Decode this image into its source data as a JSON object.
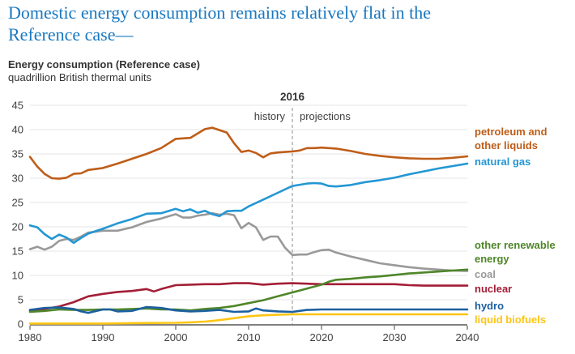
{
  "page_title": "Domestic energy consumption remains relatively flat in the Reference case—",
  "chart_header": {
    "title": "Energy consumption (Reference case)",
    "subtitle": "quadrillion British thermal units"
  },
  "colors": {
    "title_blue": "#1878c0",
    "text_dark": "#333333",
    "axis_text": "#404040",
    "axis_line": "#808080",
    "gridline": "#e4e4e4",
    "divider_line": "#9f9f9f"
  },
  "chart_data": {
    "type": "line",
    "title": "Energy consumption (Reference case)",
    "ylabel": "quadrillion British thermal units",
    "xlim": [
      1980,
      2040
    ],
    "ylim": [
      0,
      45
    ],
    "xticks": [
      1980,
      1990,
      2000,
      2010,
      2020,
      2030,
      2040
    ],
    "yticks": [
      0,
      5,
      10,
      15,
      20,
      25,
      30,
      35,
      40,
      45
    ],
    "grid": "horizontal",
    "legend_position": "right",
    "divider": {
      "year": 2016,
      "label": "2016",
      "left_label": "history",
      "right_label": "projections"
    },
    "series": [
      {
        "name": "coal",
        "color": "#999999",
        "points": [
          [
            1980,
            15.4
          ],
          [
            1981,
            15.9
          ],
          [
            1982,
            15.3
          ],
          [
            1983,
            15.9
          ],
          [
            1984,
            17.1
          ],
          [
            1985,
            17.5
          ],
          [
            1986,
            17.3
          ],
          [
            1987,
            18.0
          ],
          [
            1988,
            18.8
          ],
          [
            1990,
            19.2
          ],
          [
            1992,
            19.2
          ],
          [
            1994,
            19.9
          ],
          [
            1996,
            21.0
          ],
          [
            1998,
            21.7
          ],
          [
            2000,
            22.6
          ],
          [
            2001,
            21.9
          ],
          [
            2002,
            21.9
          ],
          [
            2003,
            22.3
          ],
          [
            2004,
            22.5
          ],
          [
            2005,
            22.8
          ],
          [
            2006,
            22.5
          ],
          [
            2007,
            22.7
          ],
          [
            2008,
            22.4
          ],
          [
            2009,
            19.7
          ],
          [
            2010,
            20.8
          ],
          [
            2011,
            19.9
          ],
          [
            2012,
            17.3
          ],
          [
            2013,
            18.0
          ],
          [
            2014,
            18.0
          ],
          [
            2015,
            15.7
          ],
          [
            2016,
            14.2
          ],
          [
            2017,
            14.3
          ],
          [
            2018,
            14.3
          ],
          [
            2019,
            14.8
          ],
          [
            2020,
            15.2
          ],
          [
            2021,
            15.3
          ],
          [
            2022,
            14.7
          ],
          [
            2024,
            13.9
          ],
          [
            2026,
            13.2
          ],
          [
            2028,
            12.5
          ],
          [
            2030,
            12.1
          ],
          [
            2032,
            11.7
          ],
          [
            2034,
            11.4
          ],
          [
            2036,
            11.2
          ],
          [
            2038,
            11.0
          ],
          [
            2040,
            10.9
          ]
        ]
      },
      {
        "name": "petroleum and other liquids",
        "color": "#bf5d18",
        "points": [
          [
            1980,
            34.4
          ],
          [
            1981,
            32.4
          ],
          [
            1982,
            30.9
          ],
          [
            1983,
            30.0
          ],
          [
            1984,
            29.9
          ],
          [
            1985,
            30.1
          ],
          [
            1986,
            30.9
          ],
          [
            1987,
            31.0
          ],
          [
            1988,
            31.7
          ],
          [
            1990,
            32.1
          ],
          [
            1992,
            33.0
          ],
          [
            1994,
            34.0
          ],
          [
            1996,
            35.0
          ],
          [
            1998,
            36.2
          ],
          [
            2000,
            38.1
          ],
          [
            2002,
            38.3
          ],
          [
            2004,
            40.1
          ],
          [
            2005,
            40.4
          ],
          [
            2006,
            39.9
          ],
          [
            2007,
            39.4
          ],
          [
            2008,
            37.2
          ],
          [
            2009,
            35.4
          ],
          [
            2010,
            35.7
          ],
          [
            2011,
            35.2
          ],
          [
            2012,
            34.3
          ],
          [
            2013,
            35.1
          ],
          [
            2014,
            35.3
          ],
          [
            2015,
            35.4
          ],
          [
            2016,
            35.5
          ],
          [
            2017,
            35.7
          ],
          [
            2018,
            36.2
          ],
          [
            2019,
            36.2
          ],
          [
            2020,
            36.3
          ],
          [
            2022,
            36.1
          ],
          [
            2024,
            35.6
          ],
          [
            2026,
            35.0
          ],
          [
            2028,
            34.6
          ],
          [
            2030,
            34.3
          ],
          [
            2032,
            34.1
          ],
          [
            2034,
            34.0
          ],
          [
            2036,
            34.0
          ],
          [
            2038,
            34.2
          ],
          [
            2040,
            34.5
          ]
        ]
      },
      {
        "name": "nuclear",
        "color": "#a31e36",
        "points": [
          [
            1980,
            2.7
          ],
          [
            1982,
            3.1
          ],
          [
            1984,
            3.6
          ],
          [
            1986,
            4.5
          ],
          [
            1988,
            5.7
          ],
          [
            1990,
            6.2
          ],
          [
            1992,
            6.6
          ],
          [
            1994,
            6.8
          ],
          [
            1996,
            7.2
          ],
          [
            1997,
            6.7
          ],
          [
            1998,
            7.2
          ],
          [
            2000,
            8.0
          ],
          [
            2002,
            8.1
          ],
          [
            2004,
            8.2
          ],
          [
            2006,
            8.2
          ],
          [
            2008,
            8.4
          ],
          [
            2010,
            8.4
          ],
          [
            2012,
            8.1
          ],
          [
            2014,
            8.3
          ],
          [
            2016,
            8.4
          ],
          [
            2018,
            8.3
          ],
          [
            2020,
            8.2
          ],
          [
            2022,
            8.2
          ],
          [
            2024,
            8.2
          ],
          [
            2026,
            8.2
          ],
          [
            2028,
            8.2
          ],
          [
            2030,
            8.2
          ],
          [
            2032,
            8.0
          ],
          [
            2034,
            7.9
          ],
          [
            2036,
            7.9
          ],
          [
            2038,
            7.9
          ],
          [
            2040,
            7.9
          ]
        ]
      },
      {
        "name": "natural gas",
        "color": "#2397d4",
        "points": [
          [
            1980,
            20.3
          ],
          [
            1981,
            19.9
          ],
          [
            1982,
            18.5
          ],
          [
            1983,
            17.5
          ],
          [
            1984,
            18.4
          ],
          [
            1985,
            17.8
          ],
          [
            1986,
            16.7
          ],
          [
            1987,
            17.7
          ],
          [
            1988,
            18.6
          ],
          [
            1990,
            19.6
          ],
          [
            1992,
            20.7
          ],
          [
            1994,
            21.6
          ],
          [
            1996,
            22.7
          ],
          [
            1998,
            22.8
          ],
          [
            2000,
            23.7
          ],
          [
            2001,
            23.2
          ],
          [
            2002,
            23.6
          ],
          [
            2003,
            22.9
          ],
          [
            2004,
            23.3
          ],
          [
            2005,
            22.6
          ],
          [
            2006,
            22.2
          ],
          [
            2007,
            23.2
          ],
          [
            2008,
            23.3
          ],
          [
            2009,
            23.3
          ],
          [
            2010,
            24.2
          ],
          [
            2012,
            25.6
          ],
          [
            2014,
            27.0
          ],
          [
            2016,
            28.4
          ],
          [
            2018,
            28.9
          ],
          [
            2019,
            29.0
          ],
          [
            2020,
            28.9
          ],
          [
            2021,
            28.4
          ],
          [
            2022,
            28.3
          ],
          [
            2024,
            28.6
          ],
          [
            2026,
            29.2
          ],
          [
            2028,
            29.6
          ],
          [
            2030,
            30.1
          ],
          [
            2032,
            30.8
          ],
          [
            2034,
            31.4
          ],
          [
            2036,
            32.0
          ],
          [
            2038,
            32.5
          ],
          [
            2040,
            33.0
          ]
        ]
      },
      {
        "name": "other renewable energy",
        "color": "#4f8629",
        "points": [
          [
            1980,
            2.5
          ],
          [
            1982,
            2.7
          ],
          [
            1984,
            3.0
          ],
          [
            1986,
            2.9
          ],
          [
            1988,
            2.9
          ],
          [
            1990,
            3.0
          ],
          [
            1992,
            3.0
          ],
          [
            1994,
            3.1
          ],
          [
            1996,
            3.2
          ],
          [
            1998,
            3.0
          ],
          [
            2000,
            3.0
          ],
          [
            2002,
            2.8
          ],
          [
            2004,
            3.1
          ],
          [
            2006,
            3.3
          ],
          [
            2008,
            3.7
          ],
          [
            2010,
            4.3
          ],
          [
            2012,
            4.9
          ],
          [
            2014,
            5.7
          ],
          [
            2016,
            6.5
          ],
          [
            2018,
            7.3
          ],
          [
            2020,
            8.1
          ],
          [
            2021,
            8.7
          ],
          [
            2022,
            9.1
          ],
          [
            2024,
            9.3
          ],
          [
            2026,
            9.6
          ],
          [
            2028,
            9.8
          ],
          [
            2030,
            10.1
          ],
          [
            2032,
            10.4
          ],
          [
            2034,
            10.6
          ],
          [
            2036,
            10.8
          ],
          [
            2038,
            11.0
          ],
          [
            2040,
            11.2
          ]
        ]
      },
      {
        "name": "hydro",
        "color": "#1c60a0",
        "points": [
          [
            1980,
            2.9
          ],
          [
            1982,
            3.3
          ],
          [
            1984,
            3.4
          ],
          [
            1986,
            3.1
          ],
          [
            1987,
            2.6
          ],
          [
            1988,
            2.3
          ],
          [
            1990,
            3.0
          ],
          [
            1991,
            3.0
          ],
          [
            1992,
            2.6
          ],
          [
            1994,
            2.7
          ],
          [
            1996,
            3.5
          ],
          [
            1997,
            3.4
          ],
          [
            1998,
            3.3
          ],
          [
            2000,
            2.8
          ],
          [
            2002,
            2.6
          ],
          [
            2004,
            2.7
          ],
          [
            2006,
            2.9
          ],
          [
            2008,
            2.5
          ],
          [
            2010,
            2.6
          ],
          [
            2011,
            3.2
          ],
          [
            2012,
            2.8
          ],
          [
            2014,
            2.6
          ],
          [
            2016,
            2.5
          ],
          [
            2018,
            2.9
          ],
          [
            2020,
            3.0
          ],
          [
            2025,
            3.0
          ],
          [
            2030,
            3.0
          ],
          [
            2035,
            3.0
          ],
          [
            2040,
            3.0
          ]
        ]
      },
      {
        "name": "liquid biofuels",
        "color": "#fdc514",
        "points": [
          [
            1980,
            0.1
          ],
          [
            1985,
            0.1
          ],
          [
            1990,
            0.1
          ],
          [
            1995,
            0.2
          ],
          [
            2000,
            0.25
          ],
          [
            2002,
            0.35
          ],
          [
            2004,
            0.5
          ],
          [
            2006,
            0.8
          ],
          [
            2008,
            1.2
          ],
          [
            2010,
            1.6
          ],
          [
            2012,
            1.8
          ],
          [
            2014,
            1.9
          ],
          [
            2016,
            2.0
          ],
          [
            2020,
            2.0
          ],
          [
            2025,
            2.0
          ],
          [
            2030,
            2.0
          ],
          [
            2035,
            2.0
          ],
          [
            2040,
            2.0
          ]
        ]
      }
    ]
  }
}
